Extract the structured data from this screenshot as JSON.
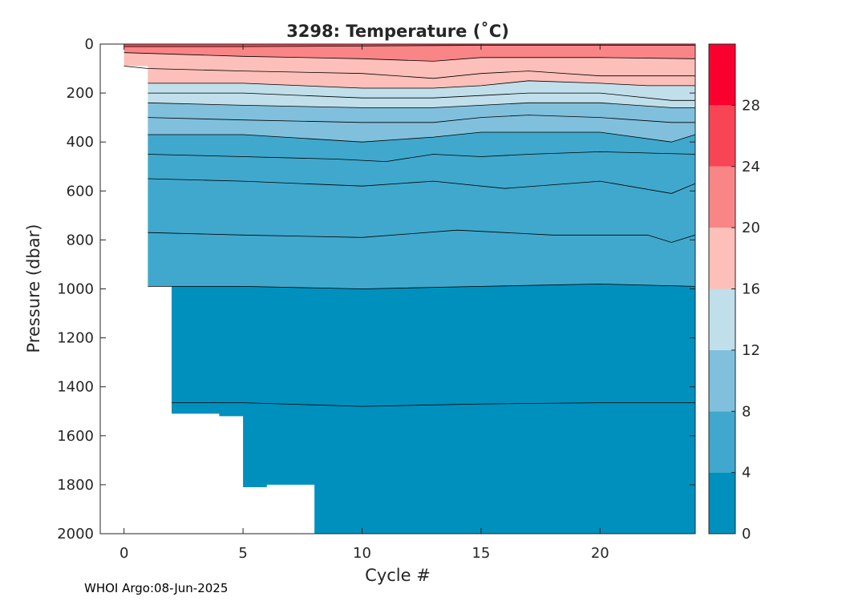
{
  "chart_data": {
    "type": "contour",
    "title": "3298:  Temperature (˚C)",
    "xlabel": "Cycle #",
    "ylabel": "Pressure (dbar)",
    "xlim": [
      -1,
      24
    ],
    "ylim": [
      2000,
      0
    ],
    "y_reversed": true,
    "x_ticks": [
      0,
      5,
      10,
      15,
      20
    ],
    "y_ticks": [
      0,
      200,
      400,
      600,
      800,
      1000,
      1200,
      1400,
      1600,
      1800,
      2000
    ],
    "grid": false,
    "colorbar": {
      "ticks": [
        0,
        4,
        8,
        12,
        16,
        20,
        24,
        28
      ],
      "levels": [
        {
          "from": 0,
          "to": 4,
          "color": "#0090be"
        },
        {
          "from": 4,
          "to": 8,
          "color": "#40a8cd"
        },
        {
          "from": 8,
          "to": 12,
          "color": "#80c0dd"
        },
        {
          "from": 12,
          "to": 16,
          "color": "#c0dfea"
        },
        {
          "from": 16,
          "to": 20,
          "color": "#fcbfb9"
        },
        {
          "from": 20,
          "to": 24,
          "color": "#f98586"
        },
        {
          "from": 24,
          "to": 28,
          "color": "#f74555"
        },
        {
          "from": 28,
          "to": 32,
          "color": "#f9002f"
        }
      ]
    },
    "profile_max_pressure": [
      {
        "cycle": 0,
        "pressure": 90
      },
      {
        "cycle": 1,
        "pressure": 990
      },
      {
        "cycle": 2,
        "pressure": 1510
      },
      {
        "cycle": 4,
        "pressure": 1520
      },
      {
        "cycle": 5,
        "pressure": 1810
      },
      {
        "cycle": 6,
        "pressure": 1800
      },
      {
        "cycle": 8,
        "pressure": 2000
      }
    ],
    "isotherm_depths": [
      {
        "temp": 24,
        "x": [
          0,
          5,
          10,
          13,
          15,
          20,
          24
        ],
        "p": [
          10,
          10,
          8,
          6,
          5,
          5,
          5
        ]
      },
      {
        "temp": 20,
        "x": [
          0,
          5,
          10,
          13,
          15,
          20,
          24
        ],
        "p": [
          35,
          50,
          60,
          70,
          55,
          55,
          60
        ]
      },
      {
        "temp": 18,
        "x": [
          0,
          1,
          5,
          10,
          13,
          15,
          17,
          20,
          24
        ],
        "p": [
          90,
          100,
          110,
          120,
          140,
          120,
          110,
          130,
          130
        ]
      },
      {
        "temp": 16,
        "x": [
          1,
          5,
          10,
          13,
          15,
          17,
          20,
          22,
          24
        ],
        "p": [
          160,
          160,
          180,
          180,
          170,
          150,
          160,
          170,
          170
        ]
      },
      {
        "temp": 14,
        "x": [
          1,
          5,
          10,
          13,
          15,
          17,
          20,
          23,
          24
        ],
        "p": [
          200,
          200,
          220,
          220,
          210,
          200,
          200,
          230,
          230
        ]
      },
      {
        "temp": 12,
        "x": [
          1,
          5,
          10,
          13,
          15,
          17,
          20,
          23,
          24
        ],
        "p": [
          240,
          250,
          260,
          260,
          250,
          240,
          240,
          260,
          260
        ]
      },
      {
        "temp": 10,
        "x": [
          1,
          5,
          10,
          13,
          15,
          17,
          20,
          23,
          24
        ],
        "p": [
          300,
          310,
          320,
          320,
          300,
          290,
          300,
          320,
          320
        ]
      },
      {
        "temp": 8,
        "x": [
          1,
          5,
          10,
          13,
          15,
          17,
          20,
          23,
          24
        ],
        "p": [
          370,
          370,
          400,
          380,
          360,
          360,
          360,
          400,
          370
        ]
      },
      {
        "temp": 7,
        "x": [
          1,
          5,
          9,
          11,
          13,
          15,
          17,
          20,
          24
        ],
        "p": [
          450,
          460,
          470,
          480,
          450,
          460,
          450,
          440,
          450
        ]
      },
      {
        "temp": 6,
        "x": [
          1,
          5,
          10,
          13,
          16,
          20,
          23,
          24
        ],
        "p": [
          550,
          560,
          580,
          560,
          590,
          560,
          610,
          570
        ]
      },
      {
        "temp": 5,
        "x": [
          1,
          5,
          10,
          14,
          18,
          22,
          23,
          24
        ],
        "p": [
          770,
          780,
          790,
          760,
          780,
          780,
          810,
          780
        ]
      },
      {
        "temp": 4,
        "x": [
          1,
          5,
          10,
          15,
          20,
          24
        ],
        "p": [
          990,
          990,
          1000,
          990,
          980,
          990
        ]
      },
      {
        "temp": 3,
        "x": [
          2,
          5,
          10,
          15,
          20,
          24
        ],
        "p": [
          1465,
          1465,
          1480,
          1470,
          1465,
          1465
        ]
      }
    ]
  },
  "footer": "WHOI Argo:08-Jun-2025"
}
